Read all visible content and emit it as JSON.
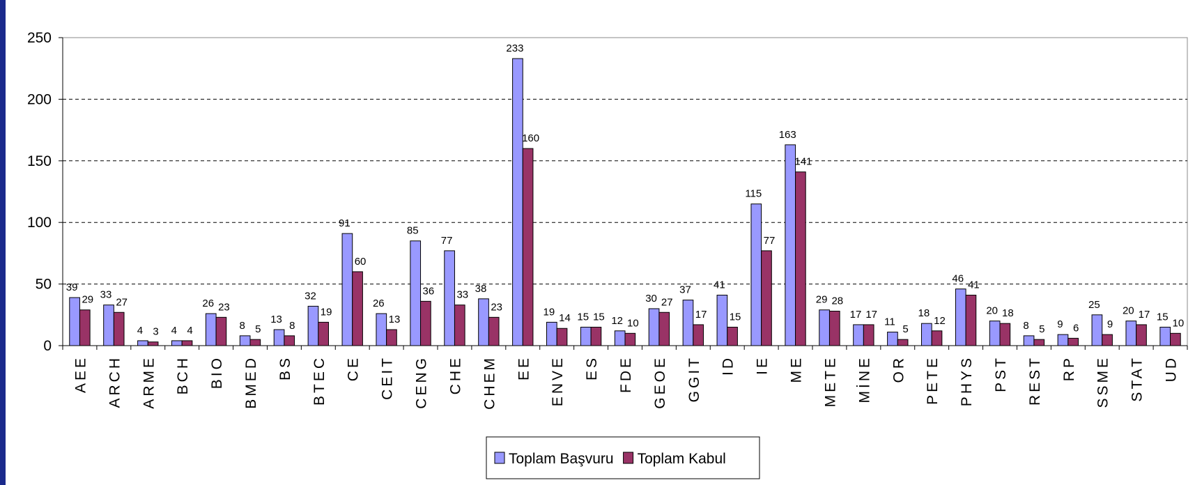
{
  "chart_data": {
    "type": "bar",
    "categories": [
      "AEE",
      "ARCH",
      "ARME",
      "BCH",
      "BIO",
      "BMED",
      "BS",
      "BTEC",
      "CE",
      "CEIT",
      "CENG",
      "CHE",
      "CHEM",
      "EE",
      "ENVE",
      "ES",
      "FDE",
      "GEOE",
      "GGIT",
      "ID",
      "IE",
      "ME",
      "METE",
      "MİNE",
      "OR",
      "PETE",
      "PHYS",
      "PST",
      "REST",
      "RP",
      "SSME",
      "STAT",
      "UD"
    ],
    "series": [
      {
        "name": "Toplam Başvuru",
        "color": "#9999ff",
        "values": [
          39,
          33,
          4,
          4,
          26,
          8,
          13,
          32,
          91,
          26,
          85,
          77,
          38,
          233,
          19,
          15,
          12,
          30,
          37,
          41,
          115,
          163,
          29,
          17,
          11,
          18,
          46,
          20,
          8,
          9,
          25,
          20,
          15
        ]
      },
      {
        "name": "Toplam Kabul",
        "color": "#993366",
        "values": [
          29,
          27,
          3,
          4,
          23,
          5,
          8,
          19,
          60,
          13,
          36,
          33,
          23,
          160,
          14,
          15,
          10,
          27,
          17,
          15,
          77,
          141,
          28,
          17,
          5,
          12,
          41,
          18,
          5,
          6,
          9,
          17,
          10
        ]
      }
    ],
    "ylim": [
      0,
      250
    ],
    "yticks": [
      0,
      50,
      100,
      150,
      200,
      250
    ],
    "grid": true,
    "legend": "bottom"
  }
}
